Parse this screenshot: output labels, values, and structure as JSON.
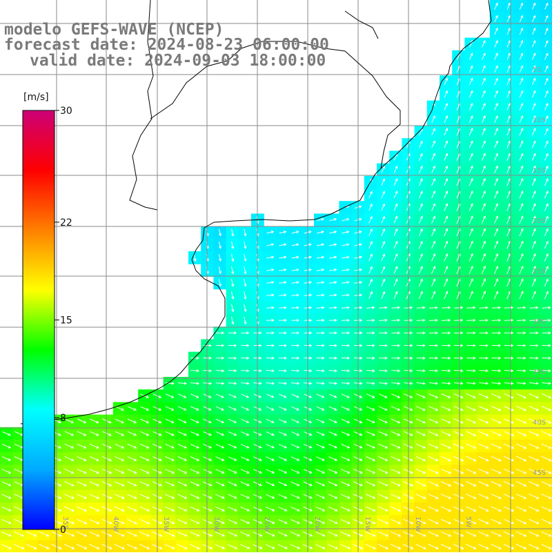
{
  "title": {
    "model": "modelo GEFS-WAVE (NCEP)",
    "forecast": "forecast date: 2024-08-23 06:00:00",
    "valid": "valid date: 2024-09-03 18:00:00"
  },
  "colorbar": {
    "unit": "[m/s]",
    "ticks": [
      "30",
      "22",
      "15",
      "8",
      "0"
    ],
    "tick_values": [
      30,
      22,
      15,
      8,
      0
    ],
    "stops": [
      "#0000ff",
      "#00aaff",
      "#00ffff",
      "#00ff00",
      "#ffff00",
      "#ff8000",
      "#ff0000",
      "#cc0077"
    ]
  },
  "graticule": {
    "lon_labels": [
      "35S",
      "40W",
      "35W",
      "30W",
      "25W",
      "20W",
      "15W",
      "10W",
      "5W"
    ],
    "lat_labels": [
      "5S",
      "10S",
      "15S",
      "20S",
      "25S",
      "30S",
      "35S",
      "40S",
      "45S"
    ]
  },
  "colors": {
    "land": "#ffffff",
    "coast": "#000000",
    "grid": "#8a8a8a",
    "arrow": "#ffffff",
    "title": "#7a7a7a"
  }
}
